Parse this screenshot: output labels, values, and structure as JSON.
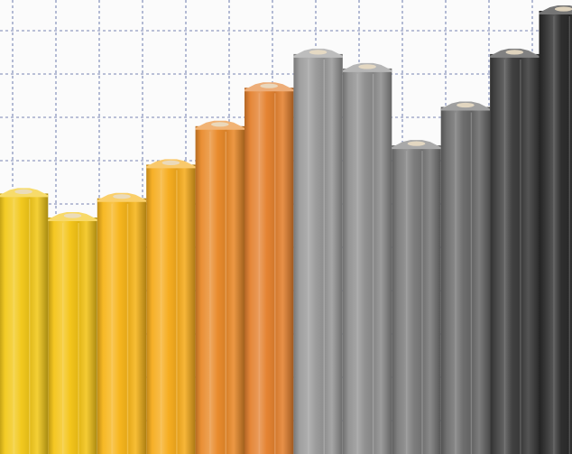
{
  "scene": {
    "description": "",
    "background": "#fbfbfb",
    "grid_color": "#4d5f9c",
    "pencils": [
      {
        "color": "#f2c81a",
        "level": 0.62
      },
      {
        "color": "#f4c417",
        "level": 0.57
      },
      {
        "color": "#f7b51a",
        "level": 0.61
      },
      {
        "color": "#f6ac1d",
        "level": 0.68
      },
      {
        "color": "#e98a2a",
        "level": 0.76
      },
      {
        "color": "#e4812f",
        "level": 0.84
      },
      {
        "color": "#9a9a9a",
        "level": 0.91
      },
      {
        "color": "#8f8f8f",
        "level": 0.88
      },
      {
        "color": "#7a7a7a",
        "level": 0.72
      },
      {
        "color": "#6b6b6b",
        "level": 0.8
      },
      {
        "color": "#3d3d3d",
        "level": 0.91
      },
      {
        "color": "#2b2b2b",
        "level": 1.0
      }
    ]
  }
}
